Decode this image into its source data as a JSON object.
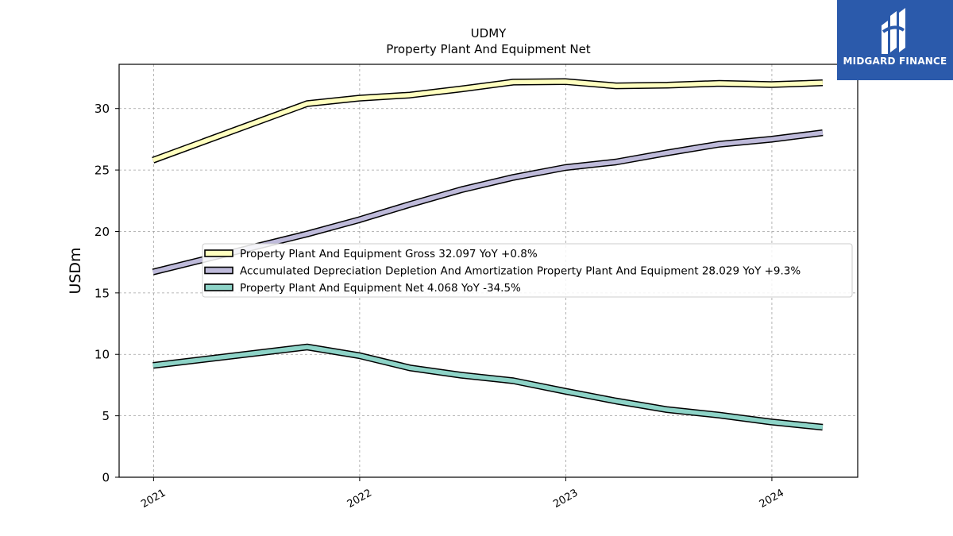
{
  "logo": {
    "text": "MIDGARD FINANCE",
    "colors": {
      "background": "#2b5aab",
      "mark": "#ffffff"
    }
  },
  "chart_data": {
    "type": "line",
    "title": "UDMY",
    "subtitle": "Property Plant And Equipment Net",
    "xlabel": "",
    "ylabel": "USDm",
    "x_ticks": [
      "2021",
      "2022",
      "2023",
      "2024"
    ],
    "y_ticks": [
      0,
      5,
      10,
      15,
      20,
      25,
      30
    ],
    "xlim": [
      "2020-11-01",
      "2024-06-01"
    ],
    "ylim": [
      0,
      33.6
    ],
    "grid": true,
    "legend_position": "center-left",
    "x": [
      "2020-12-31",
      "2021-09-30",
      "2021-12-31",
      "2022-03-31",
      "2022-06-30",
      "2022-09-30",
      "2022-12-31",
      "2023-03-31",
      "2023-06-30",
      "2023-09-30",
      "2023-12-31",
      "2024-03-31"
    ],
    "series": [
      {
        "name": "Property Plant And Equipment Gross",
        "legend": "Property Plant And Equipment Gross  32.097 YoY +0.8%",
        "color": "#ffffbf",
        "values": [
          25.8,
          30.4,
          30.85,
          31.1,
          31.6,
          32.15,
          32.2,
          31.85,
          31.9,
          32.05,
          31.95,
          32.097
        ]
      },
      {
        "name": "Accumulated Depreciation Depletion And Amortization Property Plant And Equipment",
        "legend": "Accumulated Depreciation Depletion And Amortization Property Plant And Equipment  28.029 YoY +9.3%",
        "color": "#bebada",
        "values": [
          16.7,
          19.8,
          20.95,
          22.2,
          23.4,
          24.4,
          25.2,
          25.65,
          26.4,
          27.1,
          27.5,
          28.029
        ]
      },
      {
        "name": "Property Plant And Equipment Net",
        "legend": "Property Plant And Equipment Net  4.068 YoY -34.5%",
        "color": "#8dd3c7",
        "values": [
          9.1,
          10.6,
          9.9,
          8.9,
          8.3,
          7.85,
          7.0,
          6.2,
          5.5,
          5.05,
          4.5,
          4.068
        ]
      }
    ]
  }
}
